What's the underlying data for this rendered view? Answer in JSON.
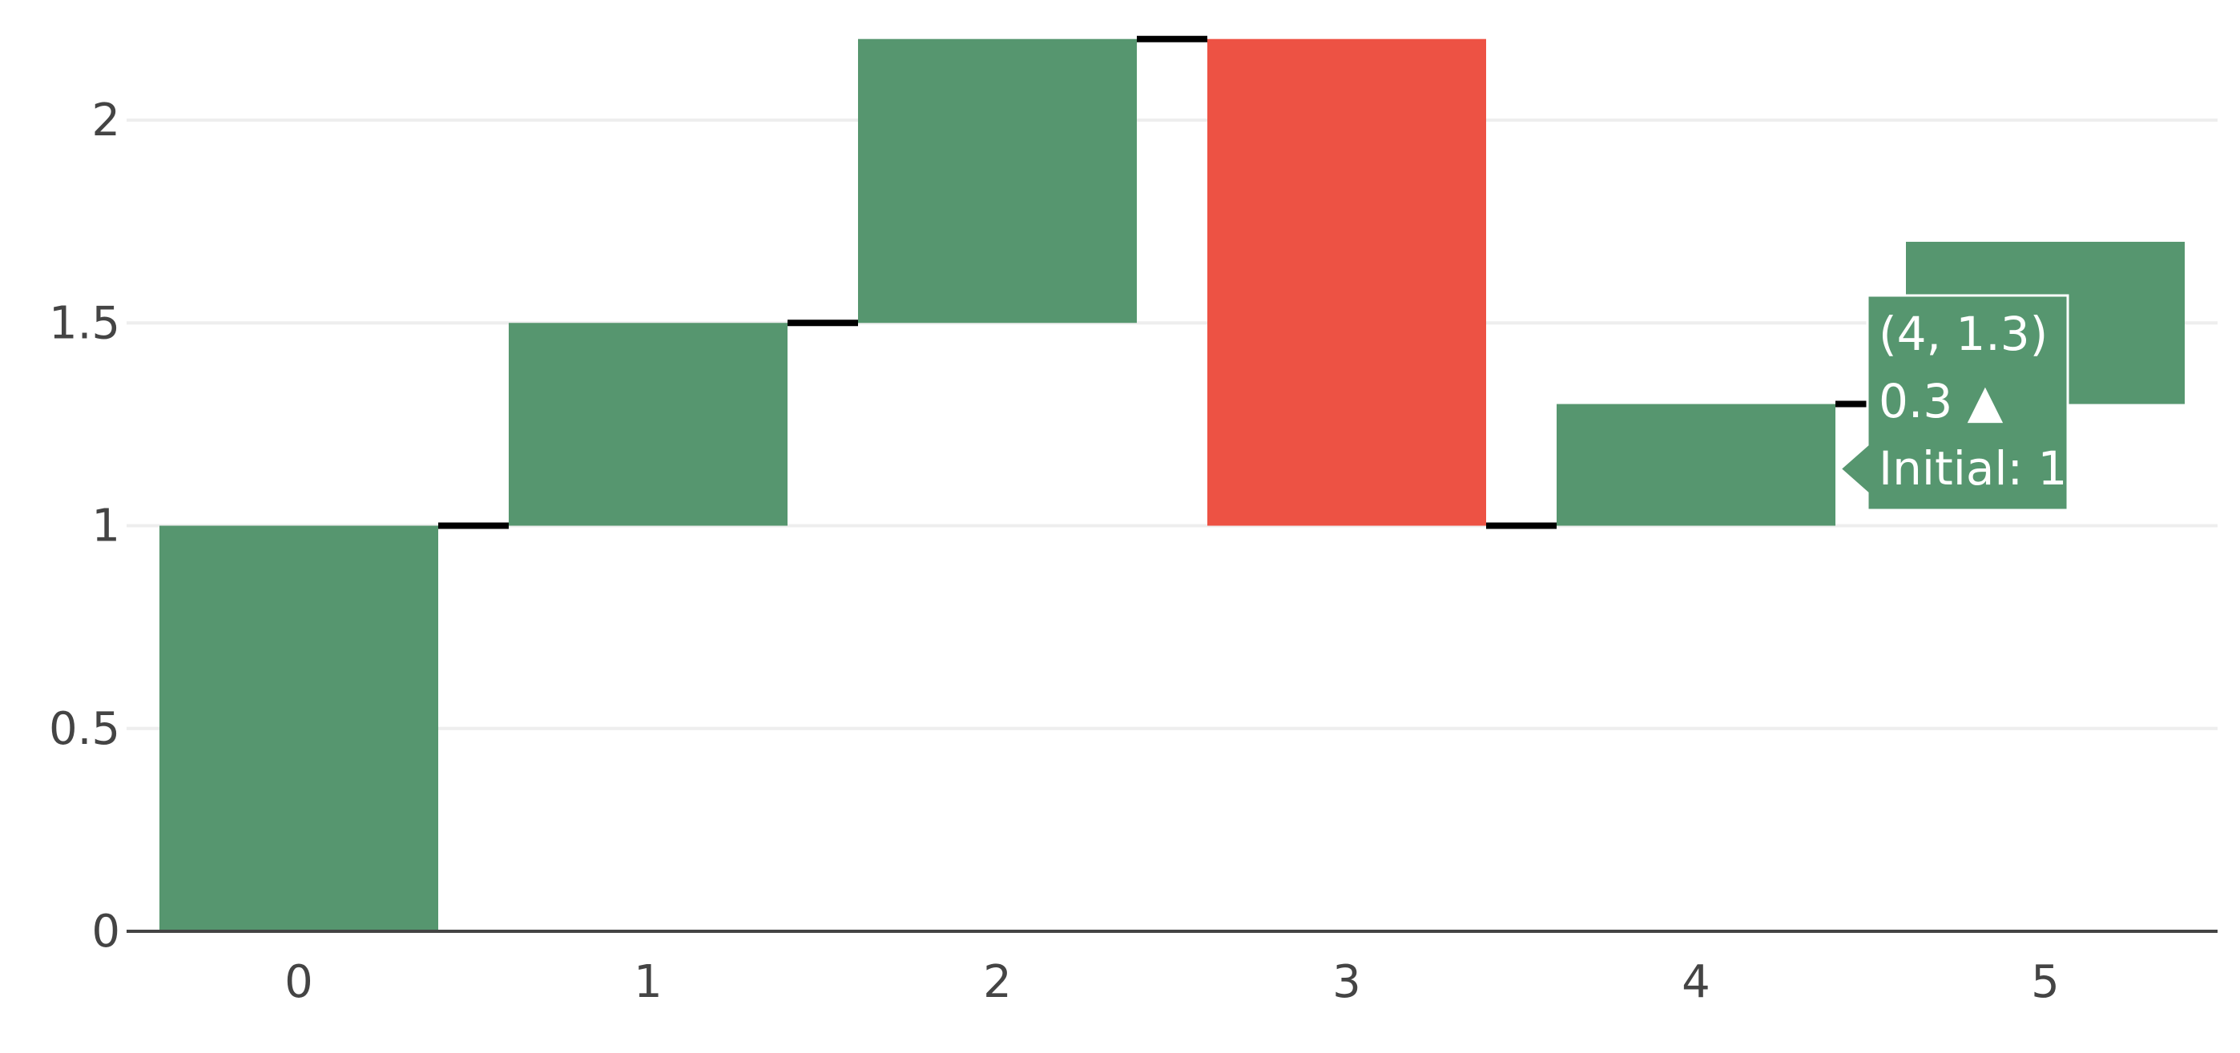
{
  "chart_data": {
    "type": "waterfall",
    "title": "",
    "xlabel": "",
    "ylabel": "",
    "categories": [
      "0",
      "1",
      "2",
      "3",
      "4",
      "5"
    ],
    "deltas": [
      1,
      0.5,
      0.7,
      -1.2,
      0.3,
      0.4
    ],
    "bars": [
      {
        "x": "0",
        "base": 0,
        "top": 1,
        "delta": 1,
        "direction": "increasing"
      },
      {
        "x": "1",
        "base": 1,
        "top": 1.5,
        "delta": 0.5,
        "direction": "increasing"
      },
      {
        "x": "2",
        "base": 1.5,
        "top": 2.2,
        "delta": 0.7,
        "direction": "increasing"
      },
      {
        "x": "3",
        "base": 2.2,
        "top": 1,
        "delta": -1.2,
        "direction": "decreasing"
      },
      {
        "x": "4",
        "base": 1,
        "top": 1.3,
        "delta": 0.3,
        "direction": "increasing"
      },
      {
        "x": "5",
        "base": 1.3,
        "top": 1.7,
        "delta": 0.4,
        "direction": "increasing"
      }
    ],
    "ylim": [
      0,
      2.2
    ],
    "yticks": [
      0,
      0.5,
      1,
      1.5,
      2
    ],
    "ytick_labels": [
      "0",
      "0.5",
      "1",
      "1.5",
      "2"
    ],
    "xtick_labels": [
      "0",
      "1",
      "2",
      "3",
      "4",
      "5"
    ],
    "grid": "horizontal",
    "legend": "none",
    "colors": {
      "increasing": "#56966f",
      "decreasing": "#ed5244",
      "connector": "#000000",
      "grid": "#eeeeee",
      "axis": "#444444",
      "tick_text": "#444444"
    },
    "tooltip": {
      "category": "4",
      "lines": [
        "(4, 1.3)",
        "0.3 ▲",
        "Initial: 1"
      ],
      "background": "#56966f",
      "text_color": "#ffffff"
    }
  }
}
